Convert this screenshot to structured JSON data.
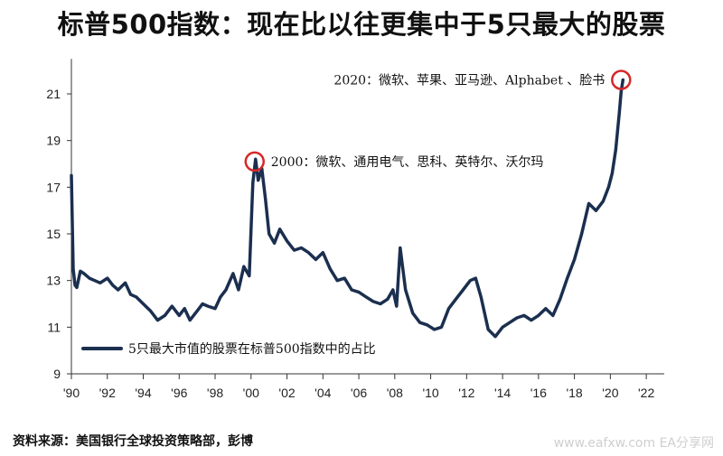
{
  "title": "标普500指数：现在比以往更集中于5只最大的股票",
  "source": "资料来源：美国银行全球投资策略部，彭博",
  "watermark": "www.eafxw.com EA分享网",
  "colors": {
    "series": "#1b2f4f",
    "highlight_circle": "#d62828",
    "axis": "#333333"
  },
  "chart_data": {
    "type": "line",
    "title": "标普500指数：现在比以往更集中于5只最大的股票",
    "xlabel": "",
    "ylabel": "",
    "ylim": [
      9,
      22.5
    ],
    "xlim": [
      1990,
      2023
    ],
    "y_ticks": [
      9,
      11,
      13,
      15,
      17,
      19,
      21
    ],
    "y_tick_labels": [
      "9",
      "11",
      "13",
      "15",
      "17",
      "19",
      "21"
    ],
    "x_ticks": [
      1990,
      1992,
      1994,
      1996,
      1998,
      2000,
      2002,
      2004,
      2006,
      2008,
      2010,
      2012,
      2014,
      2016,
      2018,
      2020,
      2022
    ],
    "x_tick_labels": [
      "'90",
      "'92",
      "'94",
      "'96",
      "'98",
      "'00",
      "'02",
      "'04",
      "'06",
      "'08",
      "'10",
      "'12",
      "'14",
      "'16",
      "'18",
      "'20",
      "'22"
    ],
    "grid": false,
    "legend_position": "bottom-left",
    "series": [
      {
        "name": "5只最大市值的股票在标普500指数中的占比",
        "x": [
          1990.0,
          1990.1,
          1990.2,
          1990.3,
          1990.5,
          1990.7,
          1991.0,
          1991.3,
          1991.6,
          1992.0,
          1992.3,
          1992.6,
          1993.0,
          1993.3,
          1993.6,
          1994.0,
          1994.4,
          1994.8,
          1995.2,
          1995.6,
          1996.0,
          1996.3,
          1996.6,
          1997.0,
          1997.3,
          1997.6,
          1998.0,
          1998.3,
          1998.6,
          1999.0,
          1999.3,
          1999.6,
          1999.9,
          2000.1,
          2000.25,
          2000.4,
          2000.6,
          2000.8,
          2001.0,
          2001.3,
          2001.6,
          2002.0,
          2002.4,
          2002.8,
          2003.2,
          2003.6,
          2004.0,
          2004.4,
          2004.8,
          2005.2,
          2005.6,
          2006.0,
          2006.4,
          2006.8,
          2007.2,
          2007.6,
          2007.9,
          2008.1,
          2008.3,
          2008.6,
          2009.0,
          2009.4,
          2009.8,
          2010.2,
          2010.6,
          2011.0,
          2011.4,
          2011.8,
          2012.2,
          2012.5,
          2012.8,
          2013.2,
          2013.6,
          2014.0,
          2014.4,
          2014.8,
          2015.2,
          2015.6,
          2016.0,
          2016.4,
          2016.8,
          2017.2,
          2017.6,
          2018.0,
          2018.4,
          2018.8,
          2019.2,
          2019.6,
          2019.9,
          2020.1,
          2020.3,
          2020.5,
          2020.6,
          2020.7
        ],
        "values": [
          17.5,
          13.5,
          12.8,
          12.7,
          13.4,
          13.3,
          13.1,
          13.0,
          12.9,
          13.1,
          12.8,
          12.6,
          12.9,
          12.4,
          12.3,
          12.0,
          11.7,
          11.3,
          11.5,
          11.9,
          11.5,
          11.8,
          11.3,
          11.7,
          12.0,
          11.9,
          11.8,
          12.3,
          12.6,
          13.3,
          12.6,
          13.6,
          13.2,
          17.2,
          18.2,
          17.3,
          17.8,
          16.5,
          15.0,
          14.6,
          15.2,
          14.7,
          14.3,
          14.4,
          14.2,
          13.9,
          14.2,
          13.5,
          13.0,
          13.1,
          12.6,
          12.5,
          12.3,
          12.1,
          12.0,
          12.2,
          12.6,
          11.9,
          14.4,
          12.6,
          11.6,
          11.2,
          11.1,
          10.9,
          11.0,
          11.8,
          12.2,
          12.6,
          13.0,
          13.1,
          12.3,
          10.9,
          10.6,
          11.0,
          11.2,
          11.4,
          11.5,
          11.3,
          11.5,
          11.8,
          11.5,
          12.2,
          13.1,
          13.9,
          15.0,
          16.3,
          16.0,
          16.4,
          17.0,
          17.6,
          18.6,
          20.2,
          21.1,
          21.6
        ]
      }
    ],
    "annotations": [
      {
        "text": "2000：微软、通用电气、思科、英特尔、沃尔玛",
        "x": 2000.2,
        "y": 18.1
      },
      {
        "text": "2020：微软、苹果、亚马逊、Alphabet 、脸书",
        "x": 2020.6,
        "y": 21.6
      }
    ]
  }
}
